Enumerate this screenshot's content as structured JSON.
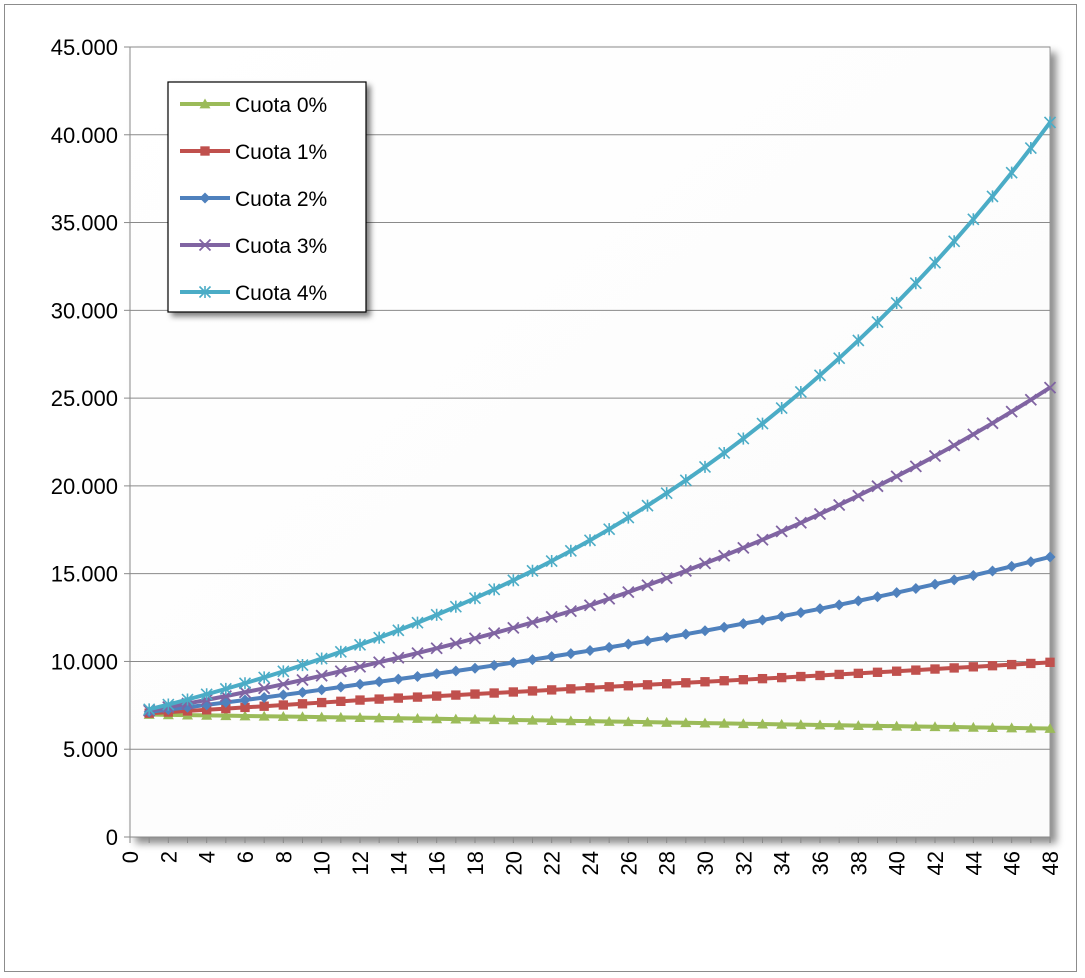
{
  "chart_data": {
    "type": "line",
    "title": "",
    "xlabel": "",
    "ylabel": "",
    "x": [
      0,
      1,
      2,
      3,
      4,
      5,
      6,
      7,
      8,
      9,
      10,
      11,
      12,
      13,
      14,
      15,
      16,
      17,
      18,
      19,
      20,
      21,
      22,
      23,
      24,
      25,
      26,
      27,
      28,
      29,
      30,
      31,
      32,
      33,
      34,
      35,
      36,
      37,
      38,
      39,
      40,
      41,
      42,
      43,
      44,
      45,
      46,
      47,
      48
    ],
    "x_tick_labels": [
      "0",
      "2",
      "4",
      "6",
      "8",
      "10",
      "12",
      "14",
      "16",
      "18",
      "20",
      "22",
      "24",
      "26",
      "28",
      "30",
      "32",
      "34",
      "36",
      "38",
      "40",
      "42",
      "44",
      "46",
      "48"
    ],
    "xlim": [
      0,
      48
    ],
    "ylim": [
      0,
      45000
    ],
    "y_ticks": [
      0,
      5000,
      10000,
      15000,
      20000,
      25000,
      30000,
      35000,
      40000,
      45000
    ],
    "y_tick_labels": [
      "0",
      "5.000",
      "10.000",
      "15.000",
      "20.000",
      "25.000",
      "30.000",
      "35.000",
      "40.000",
      "45.000"
    ],
    "grid": "horizontal",
    "legend_position": "top-left",
    "series": [
      {
        "name": "Cuota 0%",
        "color": "#9bbb59",
        "marker": "triangle",
        "points": [
          [
            1,
            6976
          ],
          [
            12,
            6800
          ],
          [
            24,
            6600
          ],
          [
            36,
            6380
          ],
          [
            48,
            6180
          ]
        ]
      },
      {
        "name": "Cuota 1%",
        "color": "#c0504d",
        "marker": "square",
        "points": [
          [
            1,
            7050
          ],
          [
            12,
            7800
          ],
          [
            24,
            8500
          ],
          [
            36,
            9200
          ],
          [
            48,
            9950
          ]
        ]
      },
      {
        "name": "Cuota 2%",
        "color": "#4f81bd",
        "marker": "diamond",
        "points": [
          [
            1,
            7130
          ],
          [
            12,
            8700
          ],
          [
            24,
            10620
          ],
          [
            36,
            13000
          ],
          [
            48,
            15950
          ]
        ]
      },
      {
        "name": "Cuota 3%",
        "color": "#8064a2",
        "marker": "x",
        "points": [
          [
            1,
            7200
          ],
          [
            12,
            9700
          ],
          [
            24,
            13200
          ],
          [
            36,
            18400
          ],
          [
            48,
            25600
          ]
        ]
      },
      {
        "name": "Cuota 4%",
        "color": "#4bacc6",
        "marker": "star",
        "points": [
          [
            1,
            7270
          ],
          [
            12,
            10950
          ],
          [
            24,
            16900
          ],
          [
            36,
            26300
          ],
          [
            48,
            40700
          ]
        ]
      }
    ]
  }
}
